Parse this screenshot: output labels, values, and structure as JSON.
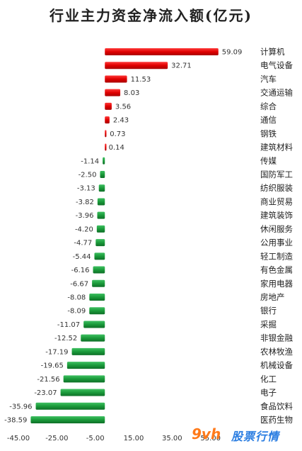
{
  "chart_data": {
    "type": "bar",
    "orientation": "horizontal",
    "title": "行业主力资金净流入额(亿元)",
    "categories": [
      "计算机",
      "电气设备",
      "汽车",
      "交通运输",
      "综合",
      "通信",
      "钢铁",
      "建筑材料",
      "传媒",
      "国防军工",
      "纺织服装",
      "商业贸易",
      "建筑装饰",
      "休闲服务",
      "公用事业",
      "轻工制造",
      "有色金属",
      "家用电器",
      "房地产",
      "银行",
      "采掘",
      "非银金融",
      "农林牧渔",
      "机械设备",
      "化工",
      "电子",
      "食品饮料",
      "医药生物"
    ],
    "values": [
      59.09,
      32.71,
      11.53,
      8.03,
      3.56,
      2.43,
      0.73,
      0.14,
      -1.14,
      -2.5,
      -3.13,
      -3.82,
      -3.96,
      -4.2,
      -4.77,
      -5.44,
      -6.16,
      -6.67,
      -8.08,
      -8.09,
      -11.07,
      -12.52,
      -17.19,
      -19.65,
      -21.56,
      -23.07,
      -35.96,
      -38.59
    ],
    "value_labels": [
      "59.09",
      "32.71",
      "11.53",
      "8.03",
      "3.56",
      "2.43",
      "0.73",
      "0.14",
      "-1.14",
      "-2.50",
      "-3.13",
      "-3.82",
      "-3.96",
      "-4.20",
      "-4.77",
      "-5.44",
      "-6.16",
      "-6.67",
      "-8.08",
      "-8.09",
      "-11.07",
      "-12.52",
      "-17.19",
      "-19.65",
      "-21.56",
      "-23.07",
      "-35.96",
      "-38.59"
    ],
    "xlim": [
      -45,
      75
    ],
    "x_ticks": [
      -45,
      -25,
      -5,
      15,
      35,
      55
    ],
    "x_tick_labels": [
      "-45.00",
      "-25.00",
      "-5.00",
      "15.00",
      "35.00",
      "55.00"
    ],
    "xlabel": "",
    "ylabel": "",
    "grid": false,
    "colors": {
      "positive": "#e60000",
      "negative": "#1a9a3a",
      "label": "#333333"
    }
  },
  "watermark": {
    "brand": "9vh",
    "site": "股票行情"
  }
}
